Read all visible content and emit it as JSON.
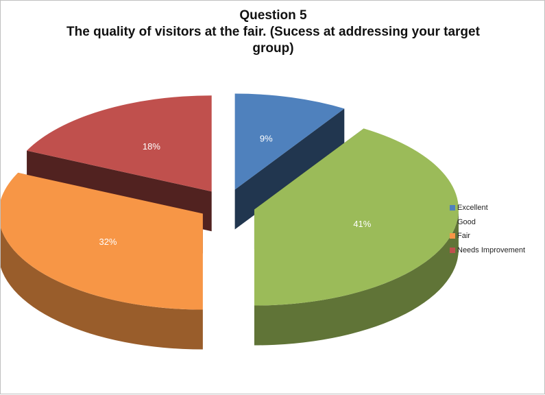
{
  "chart_data": {
    "type": "pie",
    "title": "Question 5",
    "subtitle": "The quality of visitors at the fair. (Sucess at addressing your target group)",
    "categories": [
      "Excellent",
      "Good",
      "Fair",
      "Needs Improvement"
    ],
    "values": [
      9,
      41,
      32,
      18
    ],
    "data_labels": [
      "9%",
      "41%",
      "32%",
      "18%"
    ],
    "unit": "%",
    "exploded": true,
    "three_d": true,
    "legend_position": "right",
    "colors": {
      "Excellent": "#4f81bd",
      "Good": "#9bbb59",
      "Fair": "#f79646",
      "Needs Improvement": "#c0504d"
    }
  }
}
